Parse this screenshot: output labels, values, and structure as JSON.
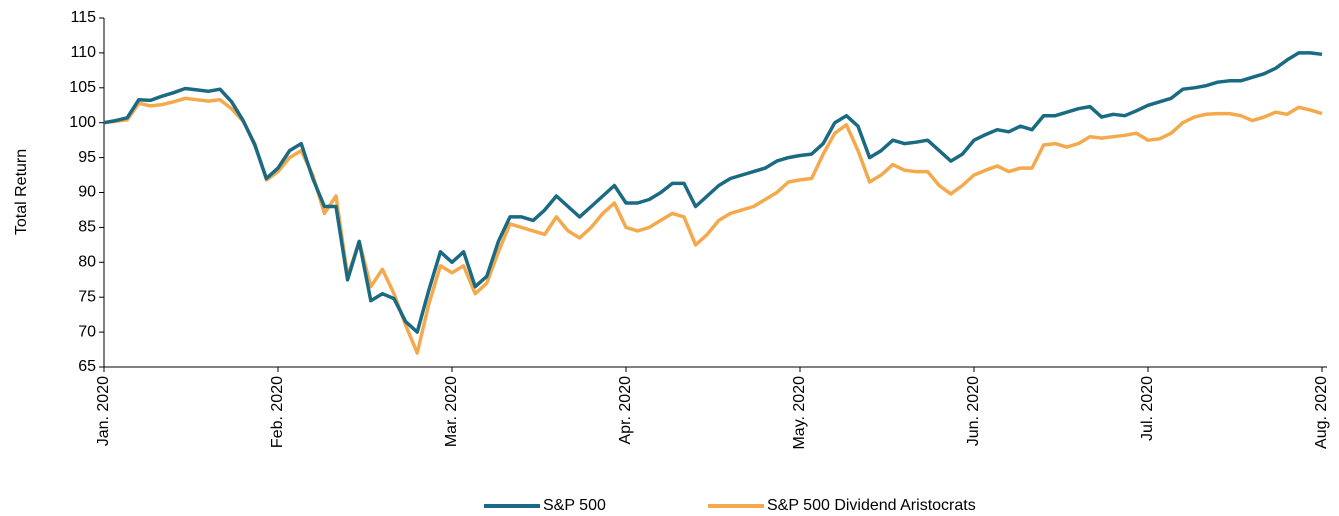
{
  "chart_data": {
    "type": "line",
    "y_label": "Total Return",
    "categories": [
      "Jan. 2020",
      null,
      null,
      null,
      null,
      null,
      null,
      null,
      null,
      null,
      null,
      null,
      null,
      null,
      null,
      "Feb. 2020",
      null,
      null,
      null,
      null,
      null,
      null,
      null,
      null,
      null,
      null,
      null,
      null,
      null,
      null,
      "Mar. 2020",
      null,
      null,
      null,
      null,
      null,
      null,
      null,
      null,
      null,
      null,
      null,
      null,
      null,
      null,
      "Apr. 2020",
      null,
      null,
      null,
      null,
      null,
      null,
      null,
      null,
      null,
      null,
      null,
      null,
      null,
      null,
      "May. 2020",
      null,
      null,
      null,
      null,
      null,
      null,
      null,
      null,
      null,
      null,
      null,
      null,
      null,
      null,
      "Jun. 2020",
      null,
      null,
      null,
      null,
      null,
      null,
      null,
      null,
      null,
      null,
      null,
      null,
      null,
      null,
      "Jul. 2020",
      null,
      null,
      null,
      null,
      null,
      null,
      null,
      null,
      null,
      null,
      null,
      null,
      null,
      null,
      "Aug. 2020"
    ],
    "series": [
      {
        "name": "S&P 500",
        "color": "#1b6a83",
        "values": [
          100,
          100.3,
          100.7,
          103.3,
          103.2,
          103.8,
          104.3,
          104.9,
          104.7,
          104.5,
          104.8,
          103.0,
          100.3,
          96.8,
          92.0,
          93.5,
          96.0,
          97.0,
          92.0,
          88.0,
          88.0,
          77.5,
          83.0,
          74.5,
          75.5,
          74.8,
          71.5,
          70.0,
          76.0,
          81.5,
          80.0,
          81.5,
          76.5,
          78.0,
          83.0,
          86.5,
          86.5,
          86.0,
          87.5,
          89.5,
          88.0,
          86.5,
          88.0,
          89.5,
          91.0,
          88.5,
          88.5,
          89.0,
          90.0,
          91.3,
          91.3,
          88.0,
          89.5,
          91.0,
          92.0,
          92.5,
          93.0,
          93.5,
          94.5,
          95.0,
          95.3,
          95.5,
          97.0,
          100.0,
          101.0,
          99.5,
          95.0,
          96.0,
          97.5,
          97.0,
          97.2,
          97.5,
          96.0,
          94.5,
          95.5,
          97.5,
          98.3,
          99.0,
          98.7,
          99.5,
          99.0,
          101.0,
          101.0,
          101.5,
          102.0,
          102.3,
          100.8,
          101.2,
          101.0,
          101.7,
          102.5,
          103.0,
          103.5,
          104.8,
          105.0,
          105.3,
          105.8,
          106.0,
          106.0,
          106.5,
          107.0,
          107.8,
          109.0,
          110.0,
          110.0,
          109.8
        ]
      },
      {
        "name": "S&P 500 Dividend Aristocrats",
        "color": "#f4a94c",
        "values": [
          100,
          100.2,
          100.4,
          102.8,
          102.4,
          102.6,
          103.0,
          103.5,
          103.3,
          103.1,
          103.3,
          102.0,
          100.2,
          97.0,
          91.8,
          93.0,
          95.0,
          96.0,
          92.5,
          87.0,
          89.5,
          78.0,
          83.0,
          76.5,
          79.0,
          75.5,
          71.0,
          67.0,
          74.0,
          79.5,
          78.5,
          79.5,
          75.5,
          77.0,
          81.5,
          85.5,
          85.0,
          84.5,
          84.0,
          86.5,
          84.5,
          83.5,
          85.0,
          87.0,
          88.5,
          85.0,
          84.5,
          85.0,
          86.0,
          87.0,
          86.5,
          82.5,
          84.0,
          86.0,
          87.0,
          87.5,
          88.0,
          89.0,
          90.0,
          91.5,
          91.8,
          92.0,
          95.5,
          98.5,
          99.7,
          96.0,
          91.5,
          92.5,
          94.0,
          93.2,
          93.0,
          93.0,
          91.0,
          89.8,
          91.0,
          92.5,
          93.2,
          93.8,
          93.0,
          93.5,
          93.5,
          96.8,
          97.0,
          96.5,
          97.0,
          98.0,
          97.8,
          98.0,
          98.2,
          98.5,
          97.5,
          97.7,
          98.5,
          100.0,
          100.8,
          101.2,
          101.3,
          101.3,
          101.0,
          100.3,
          100.8,
          101.5,
          101.2,
          102.2,
          101.8,
          101.3
        ]
      }
    ],
    "ylim": [
      65,
      115
    ],
    "yticks": [
      65,
      70,
      75,
      80,
      85,
      90,
      95,
      100,
      105,
      110,
      115
    ],
    "grid": false,
    "legend": "bottom"
  }
}
